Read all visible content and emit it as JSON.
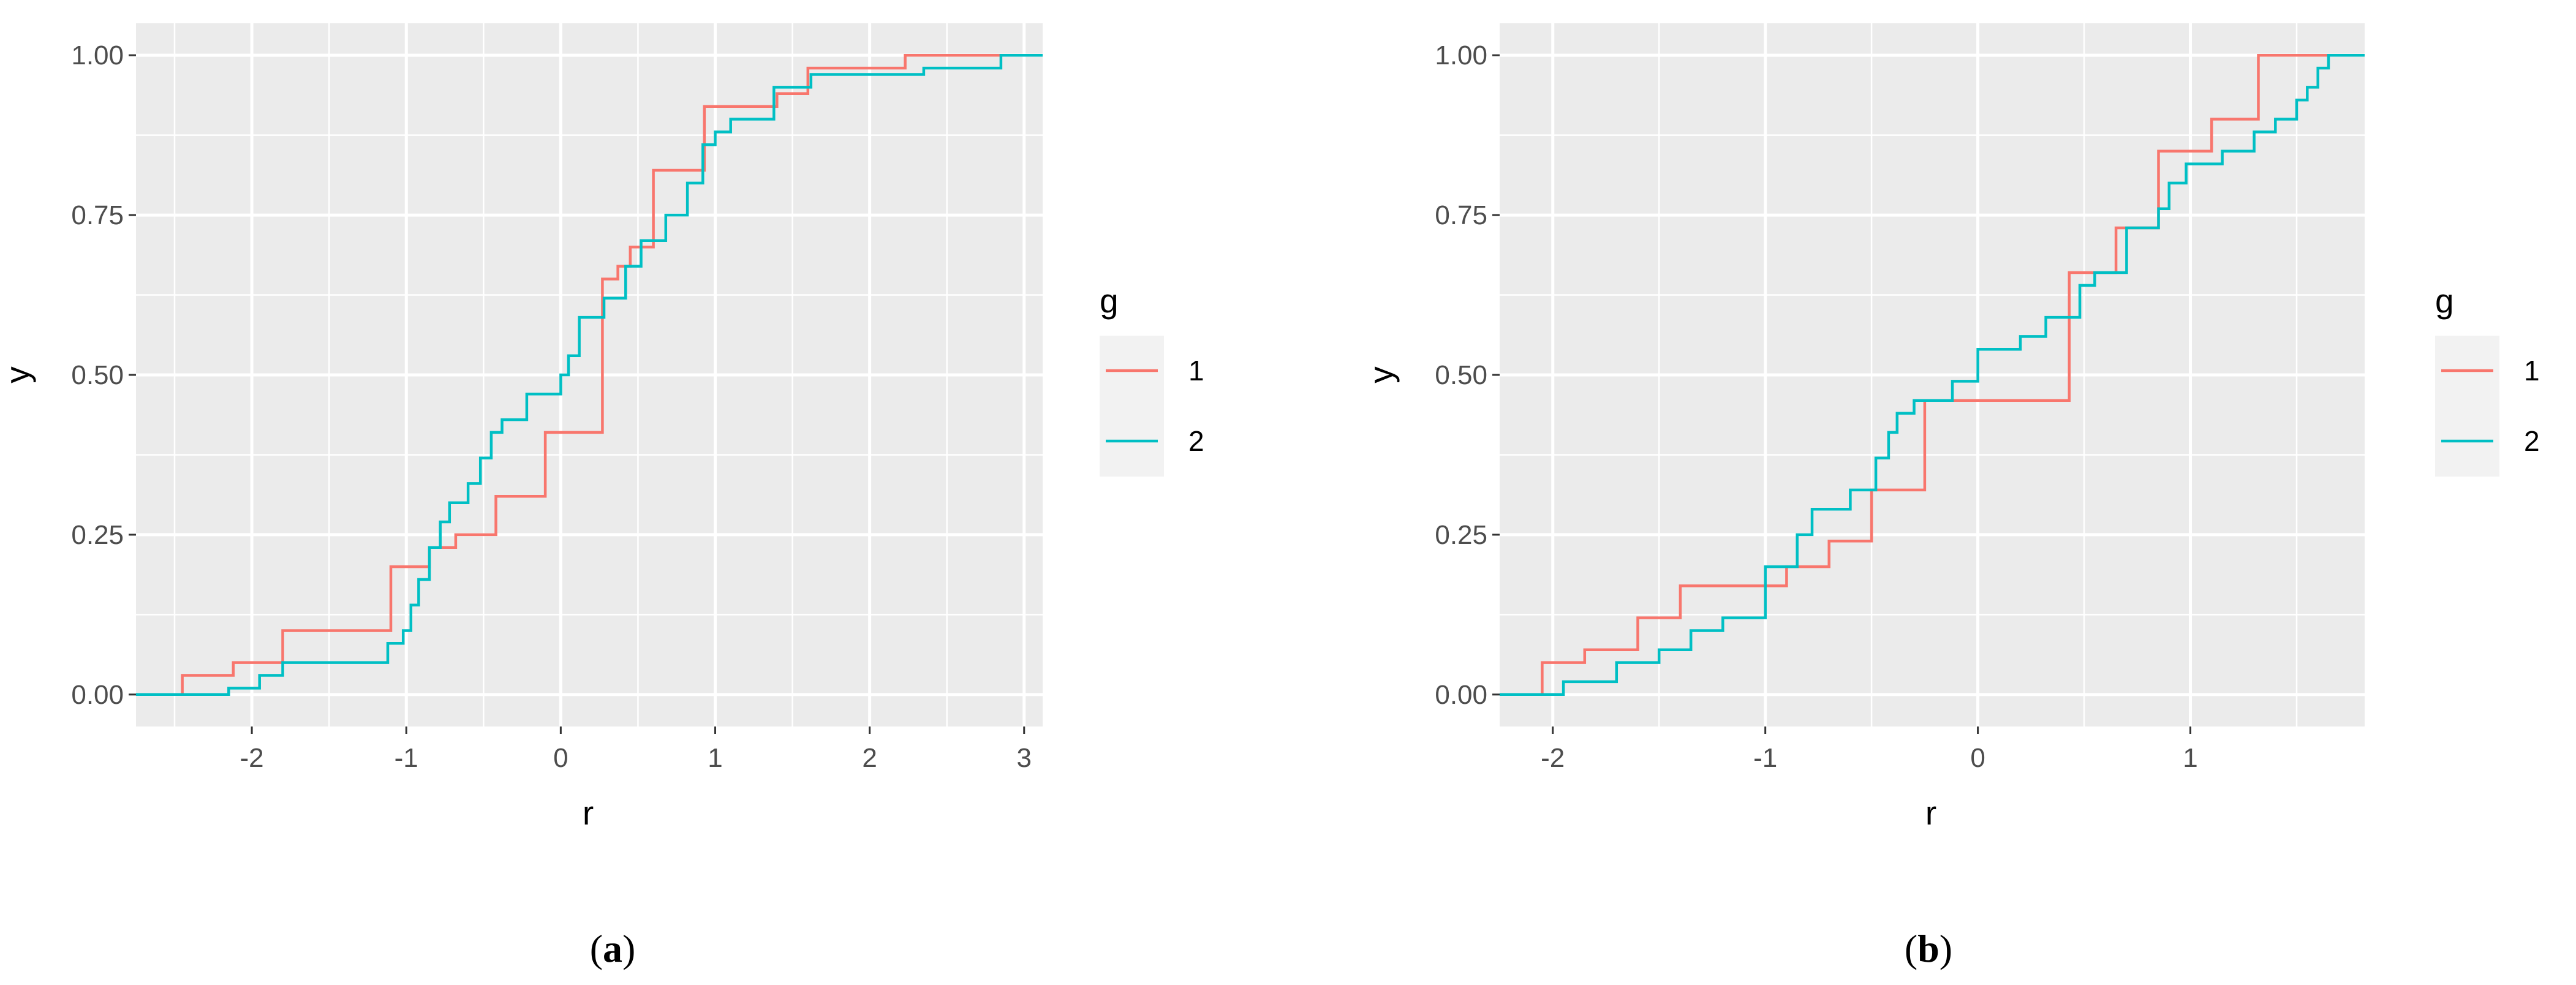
{
  "chart_data": [
    {
      "type": "line",
      "subtype": "step-ecdf",
      "xlabel": "r",
      "ylabel": "y",
      "xlim": [
        -2.75,
        3.12
      ],
      "ylim": [
        -0.05,
        1.05
      ],
      "xticks": [
        "-2",
        "-1",
        "0",
        "1",
        "2",
        "3"
      ],
      "yticks": [
        "0.00",
        "0.25",
        "0.50",
        "0.75",
        "1.00"
      ],
      "legend": {
        "title": "g",
        "position": "right"
      },
      "caption": {
        "open": "(",
        "letter": "a",
        "close": ")"
      },
      "series": [
        {
          "name": "1",
          "color": "#F8766D",
          "x": [
            -2.75,
            -2.45,
            -2.12,
            -1.8,
            -1.1,
            -0.85,
            -0.68,
            -0.42,
            -0.1,
            0.27,
            0.37,
            0.45,
            0.6,
            0.93,
            1.4,
            1.6,
            2.23,
            3.12
          ],
          "y": [
            0.0,
            0.03,
            0.05,
            0.1,
            0.2,
            0.23,
            0.25,
            0.31,
            0.41,
            0.65,
            0.67,
            0.7,
            0.82,
            0.92,
            0.94,
            0.98,
            1.0,
            1.0
          ]
        },
        {
          "name": "2",
          "color": "#00BFC4",
          "x": [
            -2.75,
            -2.15,
            -1.95,
            -1.8,
            -1.12,
            -1.02,
            -0.97,
            -0.92,
            -0.85,
            -0.78,
            -0.72,
            -0.6,
            -0.52,
            -0.45,
            -0.38,
            -0.22,
            0.0,
            0.05,
            0.12,
            0.28,
            0.42,
            0.52,
            0.68,
            0.82,
            0.92,
            1.0,
            1.1,
            1.38,
            1.62,
            1.78,
            2.35,
            2.85,
            3.12
          ],
          "y": [
            0.0,
            0.01,
            0.03,
            0.05,
            0.08,
            0.1,
            0.14,
            0.18,
            0.23,
            0.27,
            0.3,
            0.33,
            0.37,
            0.41,
            0.43,
            0.47,
            0.5,
            0.53,
            0.59,
            0.62,
            0.67,
            0.71,
            0.75,
            0.8,
            0.86,
            0.88,
            0.9,
            0.95,
            0.97,
            0.97,
            0.98,
            1.0,
            1.0
          ]
        }
      ]
    },
    {
      "type": "line",
      "subtype": "step-ecdf",
      "xlabel": "r",
      "ylabel": "y",
      "xlim": [
        -2.25,
        1.82
      ],
      "ylim": [
        -0.05,
        1.05
      ],
      "xticks": [
        "-2",
        "-1",
        "0",
        "1"
      ],
      "yticks": [
        "0.00",
        "0.25",
        "0.50",
        "0.75",
        "1.00"
      ],
      "legend": {
        "title": "g",
        "position": "right"
      },
      "caption": {
        "open": "(",
        "letter": "b",
        "close": ")"
      },
      "series": [
        {
          "name": "1",
          "color": "#F8766D",
          "x": [
            -2.25,
            -2.05,
            -1.85,
            -1.6,
            -1.4,
            -1.08,
            -0.9,
            -0.7,
            -0.5,
            -0.25,
            0.43,
            0.65,
            0.85,
            1.1,
            1.32,
            1.82
          ],
          "y": [
            0.0,
            0.05,
            0.07,
            0.12,
            0.17,
            0.17,
            0.2,
            0.24,
            0.32,
            0.46,
            0.66,
            0.73,
            0.85,
            0.9,
            1.0,
            1.0
          ]
        },
        {
          "name": "2",
          "color": "#00BFC4",
          "x": [
            -2.25,
            -1.95,
            -1.7,
            -1.5,
            -1.35,
            -1.2,
            -1.0,
            -0.95,
            -0.85,
            -0.78,
            -0.6,
            -0.48,
            -0.42,
            -0.38,
            -0.3,
            -0.12,
            0.0,
            0.2,
            0.32,
            0.48,
            0.55,
            0.7,
            0.85,
            0.9,
            0.98,
            1.15,
            1.3,
            1.4,
            1.5,
            1.55,
            1.6,
            1.65,
            1.82
          ],
          "y": [
            0.0,
            0.02,
            0.05,
            0.07,
            0.1,
            0.12,
            0.2,
            0.2,
            0.25,
            0.29,
            0.32,
            0.37,
            0.41,
            0.44,
            0.46,
            0.49,
            0.54,
            0.56,
            0.59,
            0.64,
            0.66,
            0.73,
            0.76,
            0.8,
            0.83,
            0.85,
            0.88,
            0.9,
            0.93,
            0.95,
            0.98,
            1.0,
            1.0
          ]
        }
      ]
    }
  ]
}
